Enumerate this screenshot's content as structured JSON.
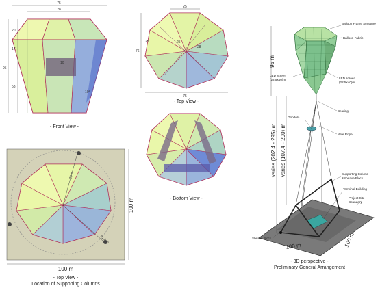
{
  "front_view": {
    "caption": "- Front View -",
    "dim_top_width": "75",
    "dim_top_inner": "28",
    "dim_h1": "20",
    "dim_h2": "17",
    "dim_total": "95",
    "dim_h3": "58",
    "dim_mid": "10",
    "dim_angle": "10°"
  },
  "top_view": {
    "caption": "- Top View -",
    "dim_top": "25",
    "dim_left": "76",
    "dim_side": "25",
    "dim_inner_a": "25",
    "dim_inner_b": "28",
    "dim_bottom": "75"
  },
  "bottom_view": {
    "caption": "- Bottom View -"
  },
  "site_view": {
    "caption_line1": "- Top View -",
    "caption_line2": "Location of Supporting Columns",
    "dim_width": "100 m",
    "dim_height": "100 m",
    "dim_radius": "30 m",
    "dim_offset": "21.2 m"
  },
  "perspective": {
    "caption_line1": "- 3D perspective -",
    "caption_line2": "Preliminary General Arrangement",
    "height_balloon": "95 m",
    "height_varies_outer": "varies (202.4 - 295) m",
    "height_varies_inner": "varies (107.4 - 200) m",
    "base_width": "100 m",
    "base_depth": "100 m",
    "labels": {
      "balloon_frame": "Balloon Frame Structure",
      "balloon_fabric": "Balloon Fabric",
      "led_left_l1": "LED screen",
      "led_left_l2": "(22.5x40)m",
      "led_right_l1": "LED screen",
      "led_right_l2": "(22.5x40)m",
      "bearing": "Bearing",
      "gondola": "Gondola",
      "wire_rope": "Wire Rope",
      "support_column_l1": "Supporting Column",
      "support_column_l2": "&Sheave Block",
      "terminal": "Terminal Building",
      "boundary_l1": "Project Site",
      "boundary_l2": "Boundary",
      "sheave": "Sheave Block"
    }
  }
}
